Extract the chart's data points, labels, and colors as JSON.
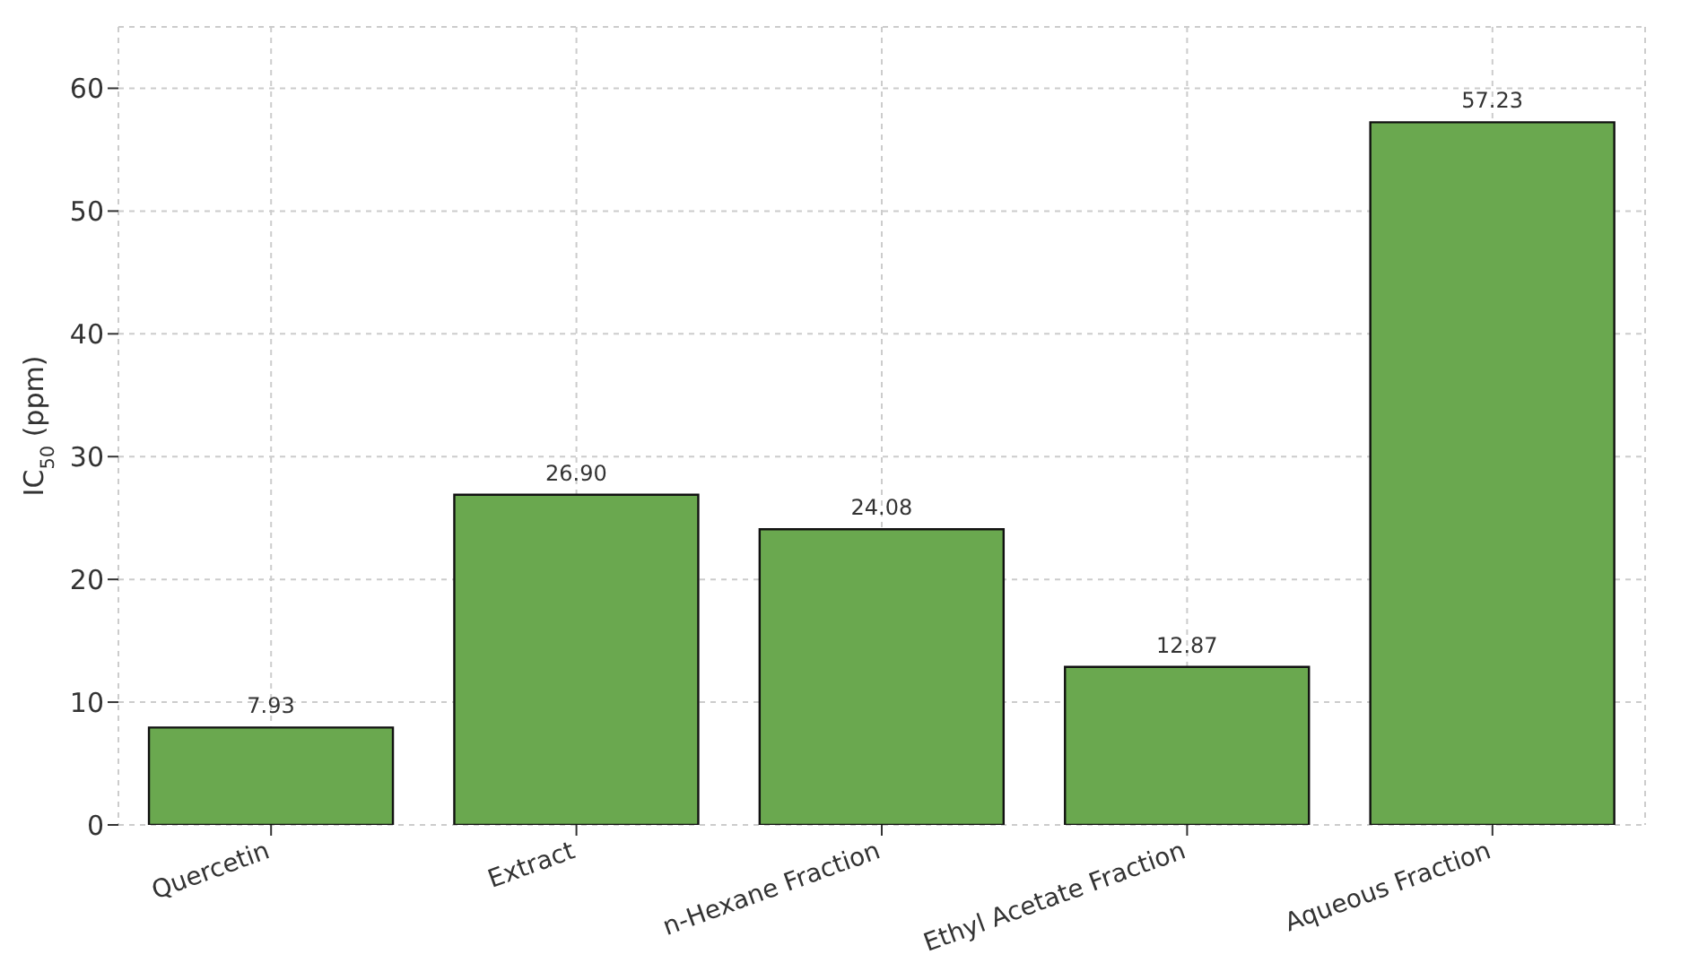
{
  "chart_data": {
    "type": "bar",
    "ylabel": "IC$_{50}$ (ppm)",
    "categories": [
      "Quercetin",
      "Extract",
      "n-Hexane Fraction",
      "Ethyl Acetate Fraction",
      "Aqueous Fraction"
    ],
    "values": [
      7.93,
      26.9,
      24.08,
      12.87,
      57.23
    ],
    "value_labels": [
      "7.93",
      "26.90",
      "24.08",
      "12.87",
      "57.23"
    ],
    "color": "#6aa84f",
    "ylim": [
      0,
      65
    ],
    "yticks": [
      0,
      10,
      20,
      30,
      40,
      50,
      60
    ],
    "grid": true,
    "legend": false
  }
}
